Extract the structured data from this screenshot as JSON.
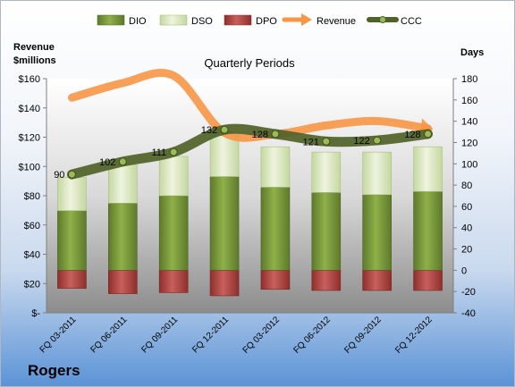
{
  "company": "Rogers",
  "chart_data": {
    "type": "bar",
    "title": "Quarterly Periods",
    "left_axis_title": [
      "Revenue",
      "$millions"
    ],
    "right_axis_title": "Days",
    "categories": [
      "FQ 03-2011",
      "FQ 06-2011",
      "FQ 09-2011",
      "FQ 12-2011",
      "FQ 03-2012",
      "FQ 06-2012",
      "FQ 09-2012",
      "FQ 12-2012"
    ],
    "left_axis": {
      "min": 0,
      "max": 160,
      "step": 20,
      "tick_labels": [
        "$-",
        "$20",
        "$40",
        "$60",
        "$80",
        "$100",
        "$120",
        "$140",
        "$160"
      ]
    },
    "right_axis": {
      "min": -40,
      "max": 180,
      "step": 20,
      "tick_labels": [
        "-40",
        "-20",
        "0",
        "20",
        "40",
        "60",
        "80",
        "100",
        "120",
        "140",
        "160",
        "180"
      ]
    },
    "series": [
      {
        "name": "DIO",
        "axis": "right",
        "kind": "stacked-bar",
        "color": "#77933c",
        "values": [
          56,
          63,
          70,
          88,
          78,
          73,
          71,
          74
        ]
      },
      {
        "name": "DSO",
        "axis": "right",
        "kind": "stacked-bar",
        "color": "#d7e4bd",
        "values": [
          31,
          36,
          37,
          41,
          38,
          38,
          40,
          42
        ]
      },
      {
        "name": "DPO",
        "axis": "right",
        "kind": "bar",
        "color": "#c0504d",
        "values": [
          -17,
          -22,
          -21,
          -24,
          -18,
          -19,
          -19,
          -19
        ]
      },
      {
        "name": "Revenue",
        "axis": "left",
        "kind": "line",
        "color": "#f79646",
        "values": [
          147,
          157,
          162,
          123,
          122,
          128,
          131,
          126
        ]
      },
      {
        "name": "CCC",
        "axis": "right",
        "kind": "line",
        "color": "#4f6228",
        "values": [
          90,
          102,
          111,
          132,
          128,
          121,
          122,
          128
        ],
        "labels": [
          "90",
          "102",
          "111",
          "132",
          "128",
          "121",
          "122",
          "128"
        ]
      }
    ],
    "legend_position": "top",
    "grid": false
  }
}
